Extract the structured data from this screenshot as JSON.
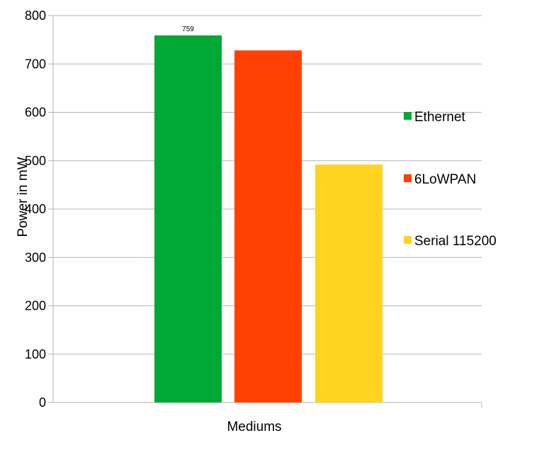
{
  "chart_data": {
    "type": "bar",
    "title": "",
    "xlabel": "Mediums",
    "ylabel": "Power in mW",
    "ylim": [
      0,
      800
    ],
    "yticks": [
      0,
      100,
      200,
      300,
      400,
      500,
      600,
      700,
      800
    ],
    "grid": true,
    "legend_position": "right",
    "series": [
      {
        "name": "Ethernet",
        "value": 759,
        "color": "#00a933",
        "label": "759"
      },
      {
        "name": "6LoWPAN",
        "value": 728,
        "color": "#ff4000",
        "label": ""
      },
      {
        "name": "Serial 115200",
        "value": 492,
        "color": "#ffd320",
        "label": ""
      }
    ]
  }
}
